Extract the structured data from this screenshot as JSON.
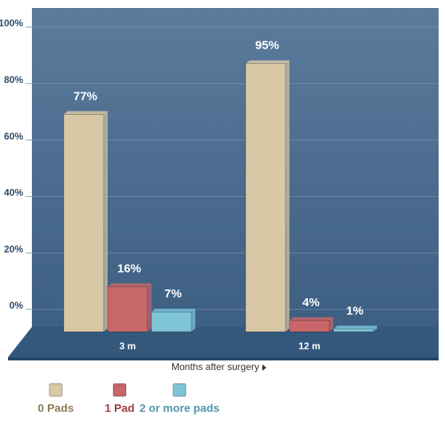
{
  "chart_data": {
    "type": "bar",
    "categories": [
      "3 m",
      "12 m"
    ],
    "series": [
      {
        "name": "0 Pads",
        "color": "#d8c8a6",
        "text_color": "#8c7a58",
        "values": [
          77,
          95
        ],
        "value_labels": [
          "77%",
          "95%"
        ]
      },
      {
        "name": "1 Pad",
        "color": "#c8676a",
        "text_color": "#9a3a3c",
        "values": [
          16,
          4
        ],
        "value_labels": [
          "16%",
          "4%"
        ]
      },
      {
        "name": "2 or more pads",
        "color": "#7fc4d8",
        "text_color": "#4f95ae",
        "values": [
          7,
          1
        ],
        "value_labels": [
          "7%",
          "1%"
        ]
      }
    ],
    "x_label": "Months after surgery",
    "ylim": [
      0,
      100
    ],
    "yticks": [
      {
        "value": 0,
        "label": "0%"
      },
      {
        "value": 20,
        "label": "20%"
      },
      {
        "value": 40,
        "label": "40%"
      },
      {
        "value": 60,
        "label": "60%"
      },
      {
        "value": 80,
        "label": "80%"
      },
      {
        "value": 100,
        "label": "100%"
      }
    ],
    "grid": true
  }
}
